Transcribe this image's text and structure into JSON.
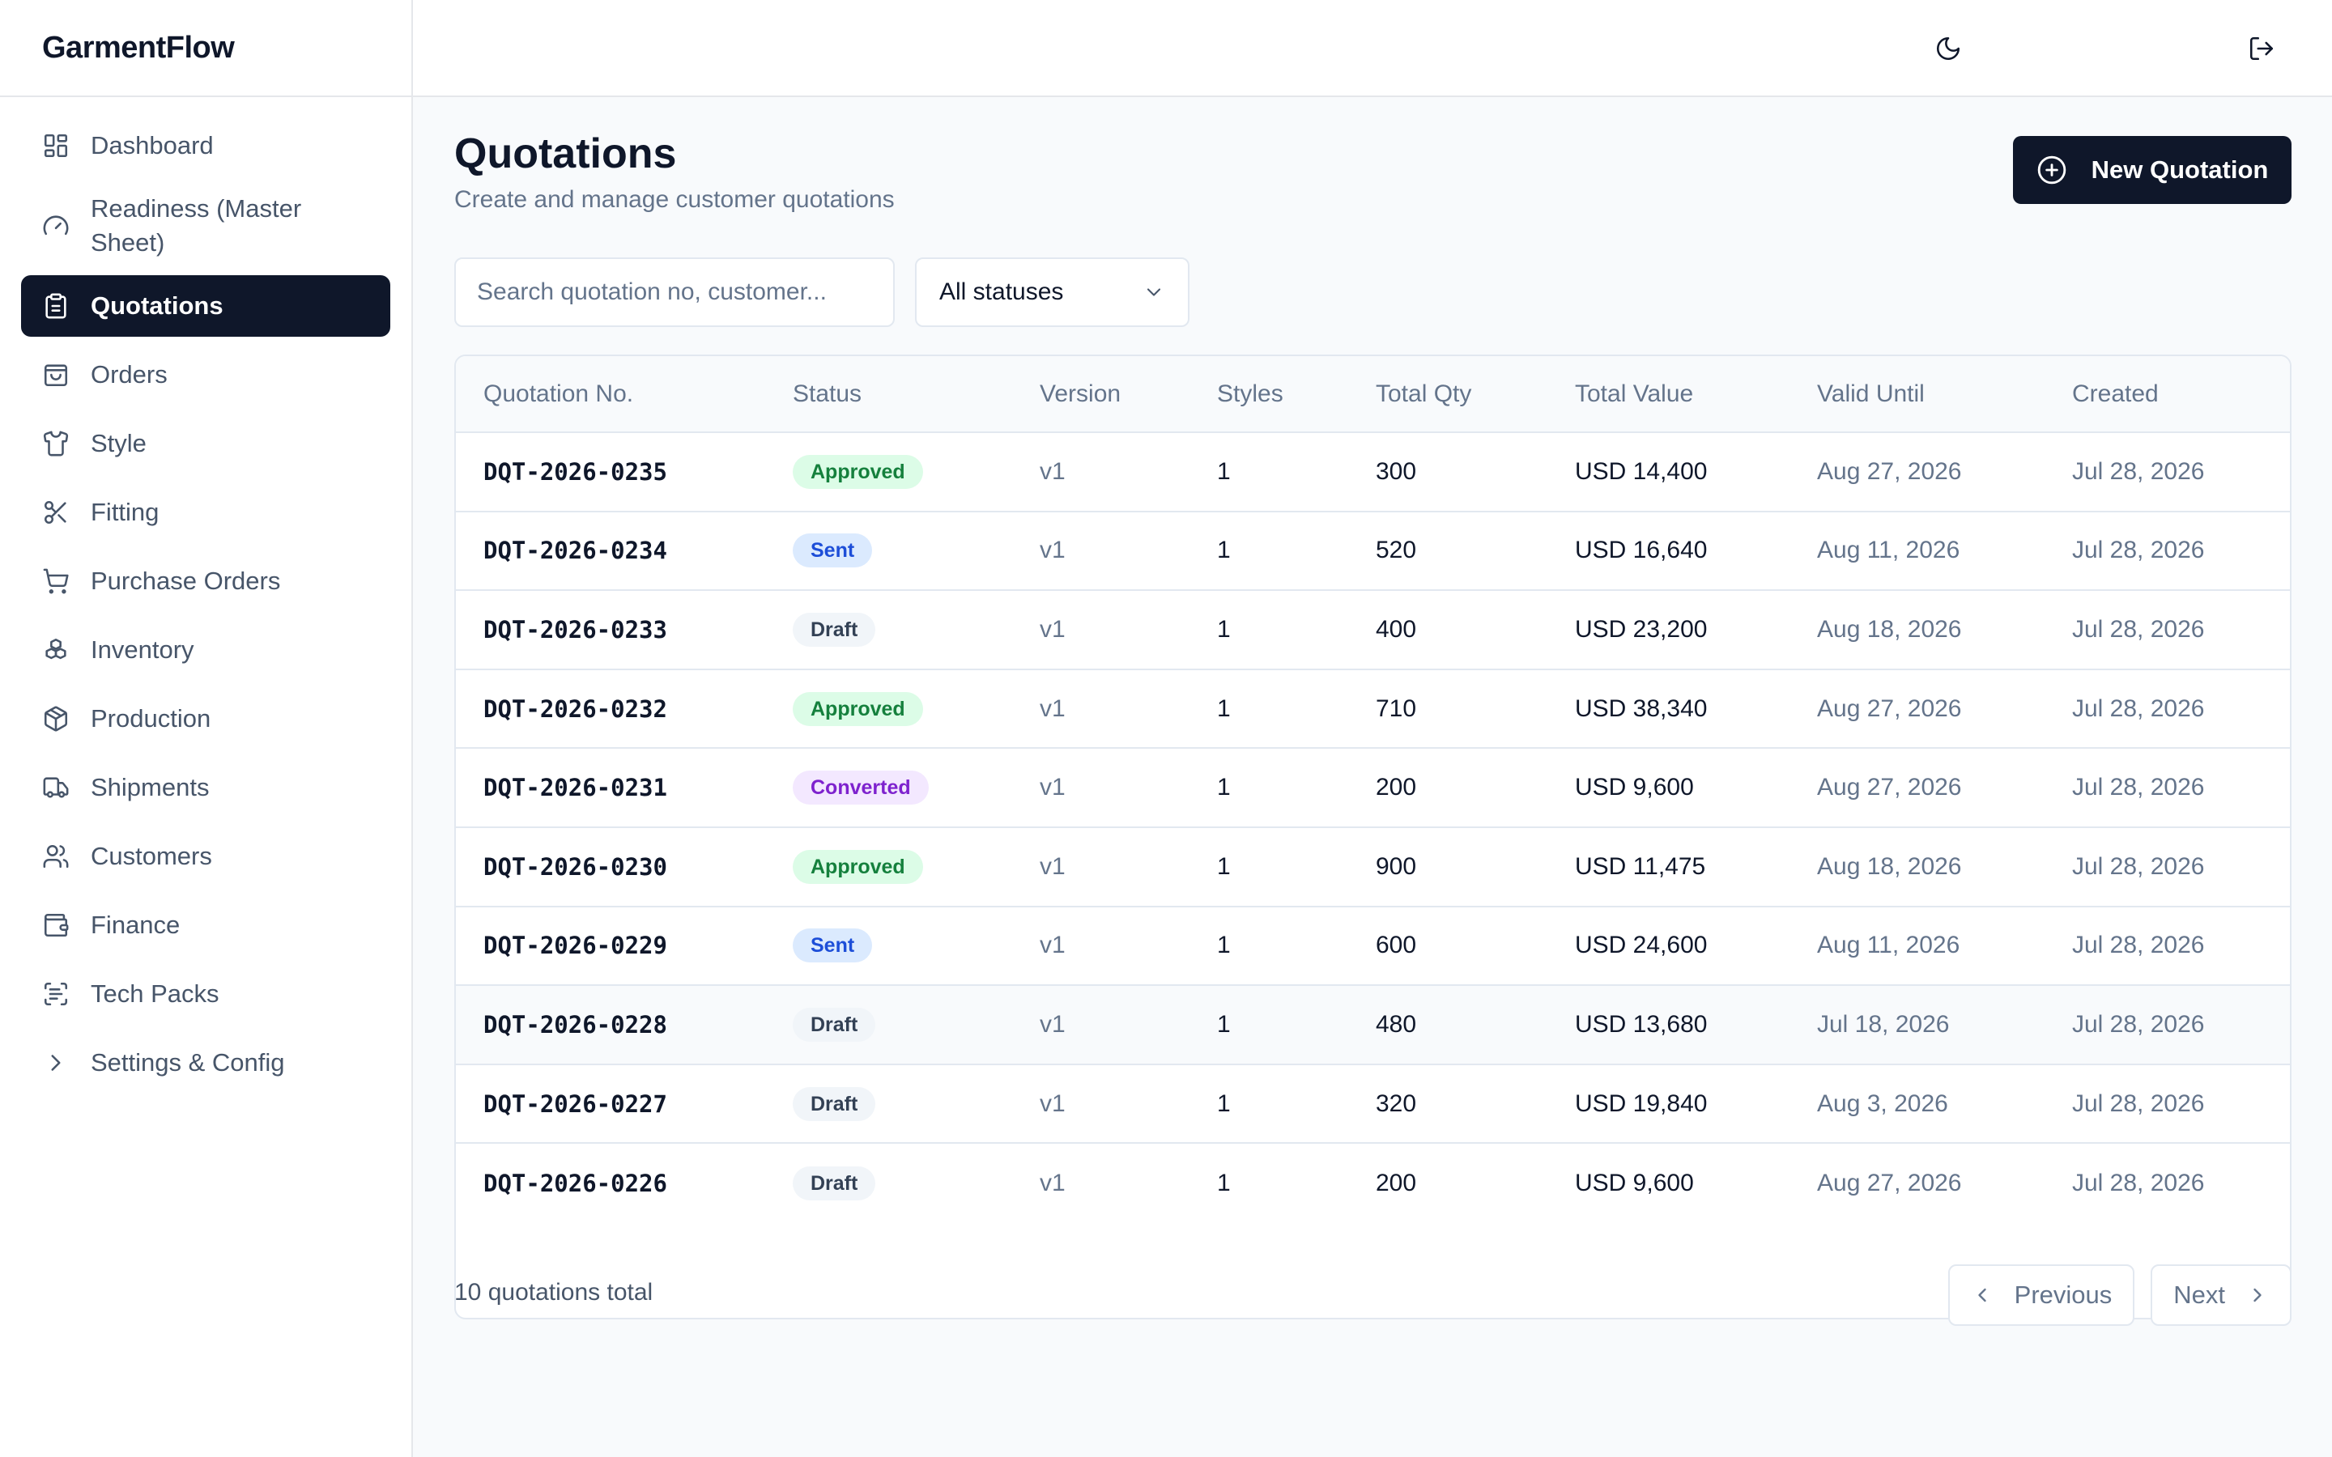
{
  "brand": "GarmentFlow",
  "sidebar": {
    "items": [
      {
        "label": "Dashboard",
        "icon": "dashboard-icon"
      },
      {
        "label": "Readiness (Master Sheet)",
        "icon": "gauge-icon"
      },
      {
        "label": "Quotations",
        "icon": "clipboard-icon",
        "active": true
      },
      {
        "label": "Orders",
        "icon": "bag-icon"
      },
      {
        "label": "Style",
        "icon": "shirt-icon"
      },
      {
        "label": "Fitting",
        "icon": "scissors-icon"
      },
      {
        "label": "Purchase Orders",
        "icon": "cart-icon"
      },
      {
        "label": "Inventory",
        "icon": "boxes-icon"
      },
      {
        "label": "Production",
        "icon": "package-icon"
      },
      {
        "label": "Shipments",
        "icon": "truck-icon"
      },
      {
        "label": "Customers",
        "icon": "users-icon"
      },
      {
        "label": "Finance",
        "icon": "wallet-icon"
      },
      {
        "label": "Tech Packs",
        "icon": "scan-text-icon"
      },
      {
        "label": "Settings & Config",
        "icon": "chevron-right-icon"
      }
    ]
  },
  "topbar": {
    "theme_icon": "moon-icon",
    "logout_icon": "logout-icon"
  },
  "header": {
    "title": "Quotations",
    "subtitle": "Create and manage customer quotations",
    "new_button": "New Quotation"
  },
  "filters": {
    "search_placeholder": "Search quotation no, customer...",
    "status_value": "All statuses"
  },
  "table": {
    "columns": [
      "Quotation No.",
      "Status",
      "Version",
      "Styles",
      "Total Qty",
      "Total Value",
      "Valid Until",
      "Created"
    ],
    "rows": [
      {
        "no": "DQT-2026-0235",
        "status": "Approved",
        "version": "v1",
        "styles": "1",
        "qty": "300",
        "value": "USD 14,400",
        "valid": "Aug 27, 2026",
        "created": "Jul 28, 2026"
      },
      {
        "no": "DQT-2026-0234",
        "status": "Sent",
        "version": "v1",
        "styles": "1",
        "qty": "520",
        "value": "USD 16,640",
        "valid": "Aug 11, 2026",
        "created": "Jul 28, 2026"
      },
      {
        "no": "DQT-2026-0233",
        "status": "Draft",
        "version": "v1",
        "styles": "1",
        "qty": "400",
        "value": "USD 23,200",
        "valid": "Aug 18, 2026",
        "created": "Jul 28, 2026"
      },
      {
        "no": "DQT-2026-0232",
        "status": "Approved",
        "version": "v1",
        "styles": "1",
        "qty": "710",
        "value": "USD 38,340",
        "valid": "Aug 27, 2026",
        "created": "Jul 28, 2026"
      },
      {
        "no": "DQT-2026-0231",
        "status": "Converted",
        "version": "v1",
        "styles": "1",
        "qty": "200",
        "value": "USD 9,600",
        "valid": "Aug 27, 2026",
        "created": "Jul 28, 2026"
      },
      {
        "no": "DQT-2026-0230",
        "status": "Approved",
        "version": "v1",
        "styles": "1",
        "qty": "900",
        "value": "USD 11,475",
        "valid": "Aug 18, 2026",
        "created": "Jul 28, 2026"
      },
      {
        "no": "DQT-2026-0229",
        "status": "Sent",
        "version": "v1",
        "styles": "1",
        "qty": "600",
        "value": "USD 24,600",
        "valid": "Aug 11, 2026",
        "created": "Jul 28, 2026"
      },
      {
        "no": "DQT-2026-0228",
        "status": "Draft",
        "version": "v1",
        "styles": "1",
        "qty": "480",
        "value": "USD 13,680",
        "valid": "Jul 18, 2026",
        "created": "Jul 28, 2026"
      },
      {
        "no": "DQT-2026-0227",
        "status": "Draft",
        "version": "v1",
        "styles": "1",
        "qty": "320",
        "value": "USD 19,840",
        "valid": "Aug 3, 2026",
        "created": "Jul 28, 2026"
      },
      {
        "no": "DQT-2026-0226",
        "status": "Draft",
        "version": "v1",
        "styles": "1",
        "qty": "200",
        "value": "USD 9,600",
        "valid": "Aug 27, 2026",
        "created": "Jul 28, 2026"
      }
    ]
  },
  "footer": {
    "count_text": "10 quotations total",
    "previous": "Previous",
    "next": "Next"
  },
  "colors": {
    "primary": "#0f172a",
    "approved": "#15803d",
    "sent": "#1d4ed8",
    "draft": "#334155",
    "converted": "#7e22ce"
  }
}
